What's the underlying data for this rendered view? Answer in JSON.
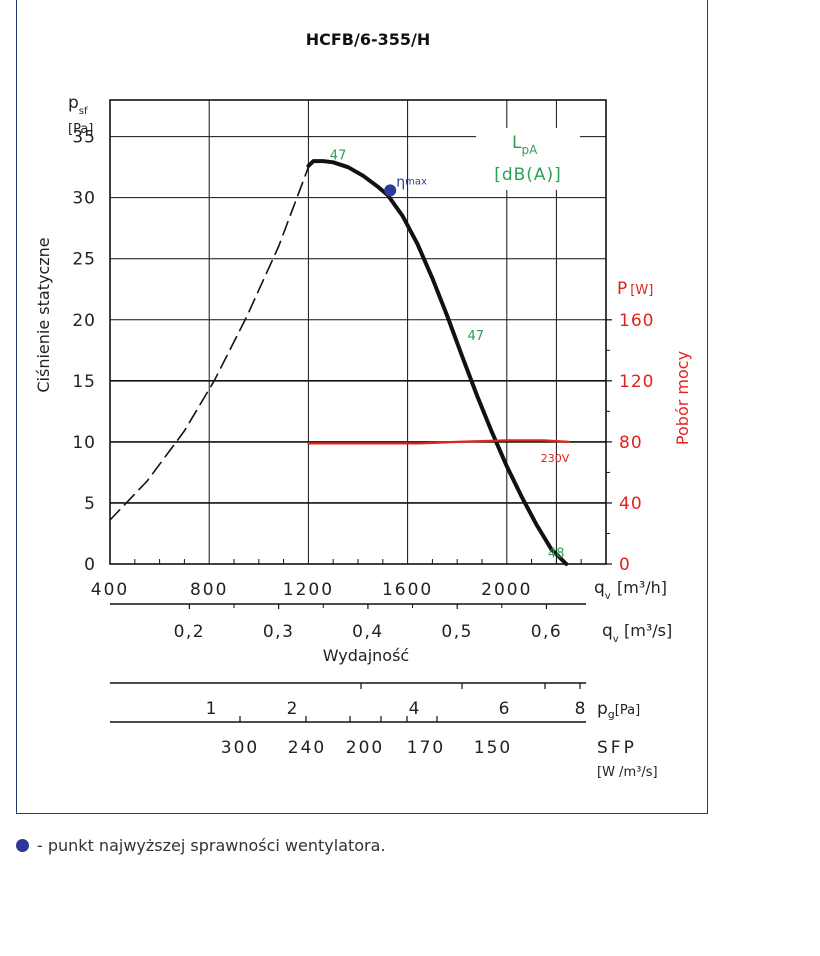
{
  "chart_data": {
    "type": "line",
    "title": "HCFB/6-355/H",
    "ylabel_left": "Ciśnienie statyczne",
    "ylabel_right": "Pobór mocy",
    "xlabel": "Wydajność",
    "y_symbol": "p",
    "y_symbol_sub": "sf",
    "y_unit": "[Pa]",
    "p_symbol": "P",
    "p_unit": "[W]",
    "qv_symbol": "q",
    "qv_sub": "v",
    "qv_unit_m3h": "[m³/h]",
    "qv_unit_m3s": "[m³/s]",
    "lpa_label": "L",
    "lpa_sub": "pA",
    "lpa_unit": "[dB(A)]",
    "eta_label": "η",
    "eta_sub": "max",
    "voltage_label": "230V",
    "xlim": [
      400,
      2400
    ],
    "ylim_pressure": [
      0,
      38
    ],
    "ylim_power": [
      0,
      304
    ],
    "x_ticks": [
      "400",
      "800",
      "1200",
      "1600",
      "2000"
    ],
    "x_tick_values": [
      400,
      800,
      1200,
      1600,
      2000
    ],
    "y_ticks": [
      "0",
      "5",
      "10",
      "15",
      "20",
      "25",
      "30",
      "35"
    ],
    "y_tick_values": [
      0,
      5,
      10,
      15,
      20,
      25,
      30,
      35
    ],
    "power_ticks": [
      "0",
      "40",
      "80",
      "120",
      "160"
    ],
    "power_tick_values": [
      0,
      40,
      80,
      120,
      160
    ],
    "m3s_ticks": [
      "0,2",
      "0,3",
      "0,4",
      "0,5",
      "0,6"
    ],
    "m3s_tick_values": [
      0.2,
      0.3,
      0.4,
      0.5,
      0.6
    ],
    "pg_scale": {
      "symbol": "p",
      "sub": "g",
      "unit": "[Pa]",
      "labels": [
        "1",
        "2",
        "4",
        "6",
        "8"
      ],
      "values": [
        1,
        2,
        4,
        6,
        8
      ]
    },
    "sfp_scale": {
      "label": "SFP",
      "unit": "[W /m³/s]",
      "labels": [
        "300",
        "240",
        "200",
        "170",
        "150"
      ],
      "values": [
        300,
        240,
        200,
        170,
        150
      ]
    },
    "series": [
      {
        "name": "pressure-unstable",
        "style": "dashed",
        "color": "#111111",
        "x": [
          400,
          550,
          700,
          820,
          950,
          1080,
          1200
        ],
        "y": [
          3.6,
          6.8,
          10.9,
          15.0,
          20.2,
          26.0,
          32.5
        ]
      },
      {
        "name": "pressure",
        "style": "solid",
        "color": "#111111",
        "x": [
          1200,
          1220,
          1260,
          1300,
          1360,
          1420,
          1480,
          1520,
          1580,
          1640,
          1700,
          1760,
          1820,
          1880,
          1940,
          2000,
          2060,
          2120,
          2180,
          2240
        ],
        "y": [
          32.6,
          33.0,
          33.0,
          32.9,
          32.5,
          31.8,
          30.9,
          30.2,
          28.5,
          26.2,
          23.4,
          20.3,
          17.0,
          13.8,
          10.8,
          8.0,
          5.5,
          3.2,
          1.2,
          0.0
        ]
      },
      {
        "name": "power",
        "style": "solid",
        "color": "#e0231c",
        "x": [
          1200,
          1400,
          1650,
          1800,
          2000,
          2150,
          2250
        ],
        "y": [
          79,
          79,
          79,
          80,
          81,
          81,
          80
        ]
      }
    ],
    "eta_max_point": {
      "x": 1530,
      "y": 30.6
    },
    "lpa_annotations": [
      {
        "text": "47",
        "x": 1360,
        "y": 33.8
      },
      {
        "text": "47",
        "x": 1915,
        "y": 19.0
      },
      {
        "text": "48",
        "x": 2240,
        "y": 1.2
      }
    ],
    "colors": {
      "frame": "#1f3d6e",
      "grid": "#111111",
      "axis_text": "#222222",
      "power": "#e0231c",
      "lpa": "#2aa055",
      "eta": "#2b3a98"
    }
  },
  "legend": {
    "marker": "eta-max-dot",
    "text": "- punkt najwyższej sprawności wentylatora."
  }
}
